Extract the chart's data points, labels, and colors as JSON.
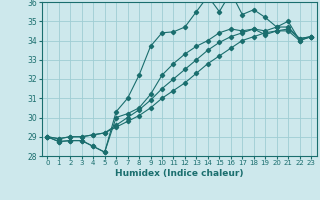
{
  "title": "",
  "xlabel": "Humidex (Indice chaleur)",
  "xlim": [
    -0.5,
    23.5
  ],
  "ylim": [
    28,
    36
  ],
  "xticks": [
    0,
    1,
    2,
    3,
    4,
    5,
    6,
    7,
    8,
    9,
    10,
    11,
    12,
    13,
    14,
    15,
    16,
    17,
    18,
    19,
    20,
    21,
    22,
    23
  ],
  "yticks": [
    28,
    29,
    30,
    31,
    32,
    33,
    34,
    35,
    36
  ],
  "background_color": "#cde8ec",
  "grid_color": "#9fcdd4",
  "line_color": "#1a6e6e",
  "lines": [
    {
      "x": [
        0,
        1,
        2,
        3,
        4,
        5,
        6,
        7,
        8,
        9,
        10,
        11,
        12,
        13,
        14,
        15,
        16,
        17,
        18,
        19,
        20,
        21,
        22,
        23
      ],
      "y": [
        29.0,
        28.75,
        28.8,
        28.8,
        28.5,
        28.2,
        30.3,
        31.0,
        32.2,
        33.7,
        34.4,
        34.45,
        34.7,
        35.5,
        36.3,
        35.5,
        36.5,
        35.35,
        35.6,
        35.2,
        34.7,
        35.0,
        34.0,
        34.2
      ]
    },
    {
      "x": [
        0,
        1,
        2,
        3,
        4,
        5,
        6,
        7,
        8,
        9,
        10,
        11,
        12,
        13,
        14,
        15,
        16,
        17,
        18,
        19,
        20,
        21,
        22,
        23
      ],
      "y": [
        29.0,
        28.75,
        28.8,
        28.8,
        28.5,
        28.2,
        30.0,
        30.2,
        30.5,
        31.2,
        32.2,
        32.8,
        33.3,
        33.7,
        34.0,
        34.4,
        34.6,
        34.5,
        34.6,
        34.3,
        34.5,
        34.5,
        34.0,
        34.2
      ]
    },
    {
      "x": [
        0,
        1,
        2,
        3,
        4,
        5,
        6,
        7,
        8,
        9,
        10,
        11,
        12,
        13,
        14,
        15,
        16,
        17,
        18,
        19,
        20,
        21,
        22,
        23
      ],
      "y": [
        29.0,
        28.9,
        29.0,
        29.0,
        29.1,
        29.2,
        29.5,
        29.8,
        30.1,
        30.5,
        31.0,
        31.4,
        31.8,
        32.3,
        32.8,
        33.2,
        33.6,
        34.0,
        34.2,
        34.4,
        34.5,
        34.6,
        34.1,
        34.2
      ]
    },
    {
      "x": [
        0,
        1,
        2,
        3,
        4,
        5,
        6,
        7,
        8,
        9,
        10,
        11,
        12,
        13,
        14,
        15,
        16,
        17,
        18,
        19,
        20,
        21,
        22,
        23
      ],
      "y": [
        29.0,
        28.9,
        29.0,
        29.0,
        29.1,
        29.2,
        29.6,
        30.0,
        30.4,
        30.9,
        31.5,
        32.0,
        32.5,
        33.0,
        33.5,
        33.9,
        34.2,
        34.4,
        34.6,
        34.5,
        34.7,
        34.7,
        34.1,
        34.2
      ]
    }
  ]
}
